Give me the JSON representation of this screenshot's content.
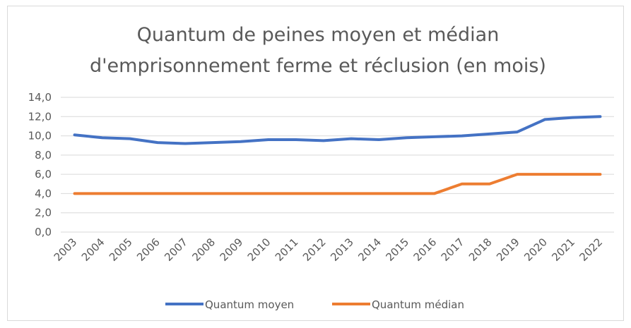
{
  "chart_data": {
    "type": "line",
    "title": [
      "Quantum de peines moyen et médian",
      "d'emprisonnement  ferme et réclusion (en mois)"
    ],
    "categories": [
      "2003",
      "2004",
      "2005",
      "2006",
      "2007",
      "2008",
      "2009",
      "2010",
      "2011",
      "2012",
      "2013",
      "2014",
      "2015",
      "2016",
      "2017",
      "2018",
      "2019",
      "2020",
      "2021",
      "2022"
    ],
    "series": [
      {
        "name": "Quantum moyen",
        "color": "#4472c4",
        "values": [
          10.1,
          9.8,
          9.7,
          9.3,
          9.2,
          9.3,
          9.4,
          9.6,
          9.6,
          9.5,
          9.7,
          9.6,
          9.8,
          9.9,
          10.0,
          10.2,
          10.4,
          11.7,
          11.9,
          12.0
        ]
      },
      {
        "name": "Quantum médian",
        "color": "#ed7d31",
        "values": [
          4,
          4,
          4,
          4,
          4,
          4,
          4,
          4,
          4,
          4,
          4,
          4,
          4,
          4,
          5,
          5,
          6,
          6,
          6,
          6
        ]
      }
    ],
    "ylim": [
      0,
      14
    ],
    "yticks": [
      {
        "value": 0,
        "label": "0,0"
      },
      {
        "value": 2,
        "label": "2,0"
      },
      {
        "value": 4,
        "label": "4,0"
      },
      {
        "value": 6,
        "label": "6,0"
      },
      {
        "value": 8,
        "label": "8,0"
      },
      {
        "value": 10,
        "label": "10,0"
      },
      {
        "value": 12,
        "label": "12,0"
      },
      {
        "value": 14,
        "label": "14,0"
      }
    ],
    "grid": true,
    "legend": "bottom"
  }
}
